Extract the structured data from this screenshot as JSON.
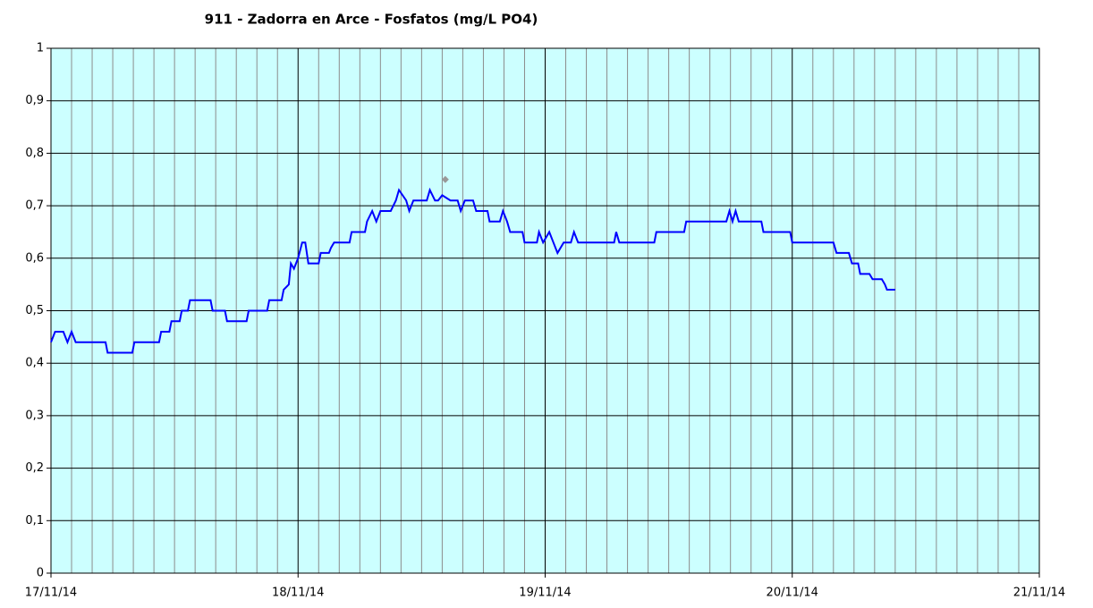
{
  "chart_data": {
    "type": "line",
    "title": "911 - Zadorra en Arce - Fosfatos (mg/L PO4)",
    "xlim": [
      0,
      96
    ],
    "xticks": [
      {
        "value": 0,
        "label": "17/11/14"
      },
      {
        "value": 24,
        "label": "18/11/14"
      },
      {
        "value": 48,
        "label": "19/11/14"
      },
      {
        "value": 72,
        "label": "20/11/14"
      },
      {
        "value": 96,
        "label": "21/11/14"
      }
    ],
    "ylim": [
      0,
      1
    ],
    "yticks": [
      0,
      {
        "value": 0.1,
        "label": "0,1"
      },
      {
        "value": 0.2,
        "label": "0,2"
      },
      {
        "value": 0.3,
        "label": "0,3"
      },
      {
        "value": 0.4,
        "label": "0,4"
      },
      {
        "value": 0.5,
        "label": "0,5"
      },
      {
        "value": 0.6,
        "label": "0,6"
      },
      {
        "value": 0.7,
        "label": "0,7"
      },
      {
        "value": 0.8,
        "label": "0,8"
      },
      {
        "value": 0.9,
        "label": "0,9"
      },
      1
    ],
    "grid": true,
    "background": "#ccffff",
    "series": [
      {
        "color": "#0000ff",
        "x": [
          0,
          0.4,
          1.2,
          1.6,
          2.0,
          2.4,
          5.3,
          5.5,
          7.9,
          8.1,
          10.5,
          10.7,
          11.5,
          11.7,
          12.5,
          12.7,
          13.3,
          13.5,
          15.5,
          15.7,
          16.9,
          17.1,
          19,
          19.2,
          21,
          21.2,
          22.4,
          22.6,
          23.1,
          23.3,
          23.6,
          24,
          24.4,
          24.7,
          25,
          26,
          26.2,
          27,
          27.2,
          27.5,
          29,
          29.2,
          30.5,
          30.7,
          31.2,
          31.6,
          32,
          33,
          33.5,
          33.8,
          34.5,
          34.8,
          35.2,
          36.5,
          36.8,
          37.3,
          37.6,
          38,
          38.8,
          39.5,
          39.8,
          40.2,
          41,
          41.3,
          42.4,
          42.6,
          43.6,
          43.9,
          44.3,
          44.6,
          45.8,
          46,
          47.2,
          47.4,
          47.8,
          48.4,
          48.8,
          49.2,
          49.8,
          50.5,
          50.8,
          51.2,
          54.7,
          54.9,
          55.2,
          58.6,
          58.8,
          61.5,
          61.7,
          65.6,
          65.9,
          66.2,
          66.5,
          66.8,
          69,
          69.2,
          71.8,
          72,
          76,
          76.3,
          77.5,
          77.8,
          78.4,
          78.6,
          79.5,
          79.8,
          80.7,
          81,
          81.2,
          82
        ],
        "values": [
          0.44,
          0.46,
          0.46,
          0.44,
          0.46,
          0.44,
          0.44,
          0.42,
          0.42,
          0.44,
          0.44,
          0.46,
          0.46,
          0.48,
          0.48,
          0.5,
          0.5,
          0.52,
          0.52,
          0.5,
          0.5,
          0.48,
          0.48,
          0.5,
          0.5,
          0.52,
          0.52,
          0.54,
          0.55,
          0.59,
          0.58,
          0.6,
          0.63,
          0.63,
          0.59,
          0.59,
          0.61,
          0.61,
          0.62,
          0.63,
          0.63,
          0.65,
          0.65,
          0.67,
          0.69,
          0.67,
          0.69,
          0.69,
          0.71,
          0.73,
          0.71,
          0.69,
          0.71,
          0.71,
          0.73,
          0.71,
          0.71,
          0.72,
          0.71,
          0.71,
          0.69,
          0.71,
          0.71,
          0.69,
          0.69,
          0.67,
          0.67,
          0.69,
          0.67,
          0.65,
          0.65,
          0.63,
          0.63,
          0.65,
          0.63,
          0.65,
          0.63,
          0.61,
          0.63,
          0.63,
          0.65,
          0.63,
          0.63,
          0.65,
          0.63,
          0.63,
          0.65,
          0.65,
          0.67,
          0.67,
          0.69,
          0.67,
          0.69,
          0.67,
          0.67,
          0.65,
          0.65,
          0.63,
          0.63,
          0.61,
          0.61,
          0.59,
          0.59,
          0.57,
          0.57,
          0.56,
          0.56,
          0.55,
          0.54,
          0.54
        ]
      },
      {
        "color": "#999999",
        "x": [
          38.3
        ],
        "values": [
          0.75
        ]
      }
    ]
  }
}
